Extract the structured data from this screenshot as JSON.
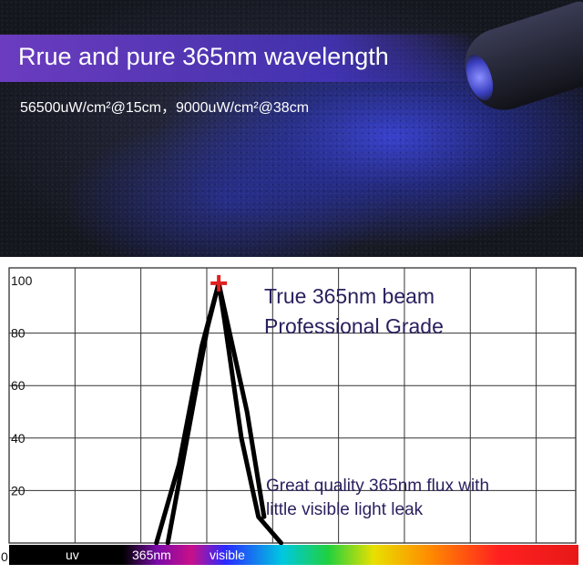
{
  "header": {
    "headline": "Rrue and pure 365nm wavelength",
    "subline": "56500uW/cm²@15cm，9000uW/cm²@38cm"
  },
  "colors": {
    "banner": "#6a3ec8",
    "curve": "#000000",
    "peak_marker": "#e02020",
    "annotation_text": "#2a1f5e",
    "grid": "#333333"
  },
  "chart_data": {
    "type": "line",
    "y_ticks": [
      "100",
      "80",
      "60",
      "40",
      "20",
      "0"
    ],
    "ylim": [
      0,
      100
    ],
    "xlim": [
      0,
      100
    ],
    "grid": true,
    "series": [
      {
        "x": [
          0,
          26,
          30,
          33,
          34,
          35,
          36,
          37,
          38,
          41,
          45,
          48,
          100
        ],
        "y": [
          0,
          0,
          40,
          70,
          85,
          96,
          99,
          96,
          85,
          70,
          40,
          0,
          0
        ]
      }
    ],
    "curve_lines": [
      {
        "x": [
          26,
          30,
          34,
          37,
          42,
          45
        ],
        "y": [
          0,
          30,
          75,
          99,
          50,
          10
        ]
      },
      {
        "x": [
          28,
          31,
          35,
          37,
          38,
          41,
          44,
          48
        ],
        "y": [
          0,
          35,
          82,
          99,
          85,
          40,
          10,
          0
        ]
      }
    ],
    "peak": {
      "x": 37,
      "y": 99
    },
    "annotations": {
      "line1": "True 365nm beam",
      "line2": "Professional Grade",
      "line3": "Great quality 365nm flux with",
      "line4": "little visible light leak"
    },
    "band_labels": {
      "uv": "uv",
      "nm": "365nm",
      "visible": "visible"
    }
  }
}
